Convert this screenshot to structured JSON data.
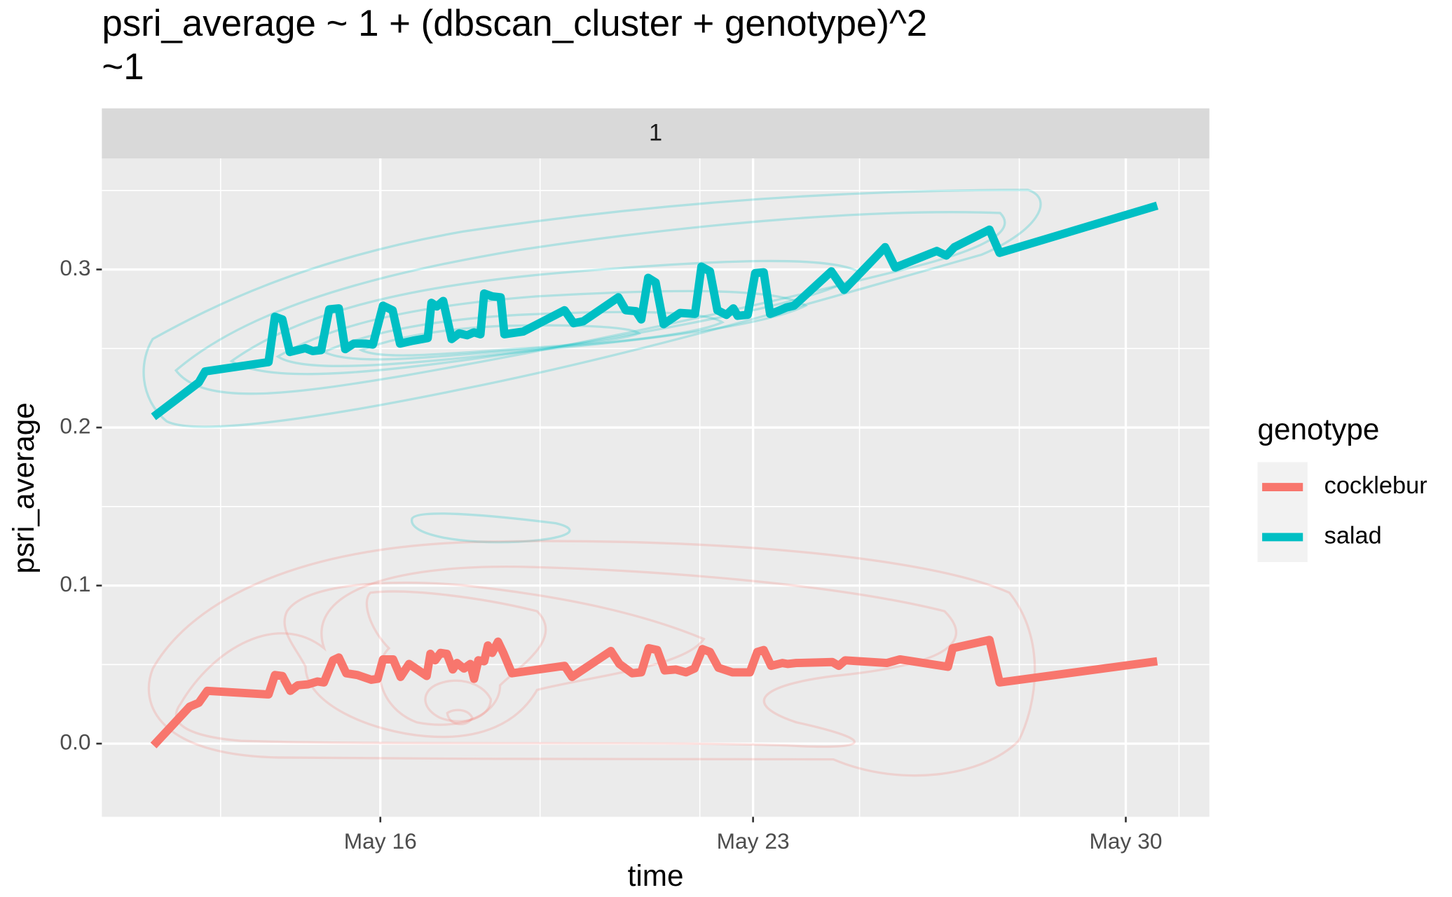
{
  "chart_data": {
    "type": "line",
    "title": "psri_average ~ 1 + (dbscan_cluster + genotype)^2",
    "subtitle": "~1",
    "facet_label": "1",
    "x_label": "time",
    "y_label": "psri_average",
    "legend_title": "genotype",
    "legend_position": "right",
    "grid": true,
    "xlim": [
      10.77,
      31.57
    ],
    "xticks": [
      {
        "value": 16,
        "label": "May 16"
      },
      {
        "value": 23,
        "label": "May 23"
      },
      {
        "value": 30,
        "label": "May 30"
      }
    ],
    "x_minor_gridlines": [
      13,
      19,
      22,
      25,
      28,
      31
    ],
    "ylim": [
      -0.0463,
      0.3703
    ],
    "yticks": [
      {
        "value": 0,
        "label": "0.0"
      },
      {
        "value": 0.1,
        "label": "0.1"
      },
      {
        "value": 0.2,
        "label": "0.2"
      },
      {
        "value": 0.3,
        "label": "0.3"
      }
    ],
    "y_minor_gridlines": [
      0.05,
      0.15,
      0.25,
      0.35
    ],
    "series": [
      {
        "name": "cocklebur",
        "color": "#f8766d",
        "x": [
          11.74,
          12.42,
          12.59,
          12.75,
          13.9,
          14.02,
          14.16,
          14.31,
          14.45,
          14.64,
          14.82,
          14.94,
          15.11,
          15.22,
          15.36,
          15.57,
          15.83,
          15.95,
          16.05,
          16.24,
          16.38,
          16.54,
          16.87,
          16.94,
          17.03,
          17.13,
          17.25,
          17.36,
          17.44,
          17.57,
          17.69,
          17.76,
          17.84,
          17.95,
          18.02,
          18.1,
          18.21,
          18.31,
          18.47,
          19.46,
          19.6,
          20.33,
          20.49,
          20.73,
          20.9,
          21.04,
          21.2,
          21.34,
          21.55,
          21.74,
          21.9,
          22.05,
          22.19,
          22.35,
          22.61,
          22.94,
          23.08,
          23.2,
          23.34,
          23.55,
          23.65,
          23.81,
          24.49,
          24.61,
          24.73,
          25.51,
          25.76,
          26.66,
          26.75,
          27.44,
          27.63,
          30.59
        ],
        "values": [
          -0.0012,
          0.0234,
          0.0258,
          0.0334,
          0.0311,
          0.0434,
          0.0428,
          0.0334,
          0.0369,
          0.0375,
          0.0393,
          0.0387,
          0.0527,
          0.0545,
          0.0445,
          0.0434,
          0.0404,
          0.041,
          0.0533,
          0.0533,
          0.0422,
          0.0504,
          0.0428,
          0.0568,
          0.0527,
          0.0574,
          0.0568,
          0.0469,
          0.051,
          0.0475,
          0.0504,
          0.041,
          0.0527,
          0.0521,
          0.0621,
          0.0574,
          0.0645,
          0.0574,
          0.0445,
          0.0492,
          0.0422,
          0.0586,
          0.0504,
          0.0445,
          0.0451,
          0.0604,
          0.0592,
          0.0463,
          0.0469,
          0.0451,
          0.0475,
          0.0598,
          0.058,
          0.048,
          0.0451,
          0.0451,
          0.058,
          0.0592,
          0.0492,
          0.051,
          0.0504,
          0.051,
          0.0516,
          0.0492,
          0.0527,
          0.051,
          0.0533,
          0.0486,
          0.0604,
          0.0656,
          0.0387,
          0.0521
        ]
      },
      {
        "name": "salad",
        "color": "#00bfc4",
        "x": [
          11.74,
          12.59,
          12.71,
          13.9,
          14.02,
          14.16,
          14.3,
          14.59,
          14.73,
          14.89,
          15.04,
          15.22,
          15.34,
          15.5,
          15.72,
          15.86,
          16.05,
          16.23,
          16.37,
          16.61,
          16.89,
          16.96,
          17.06,
          17.18,
          17.34,
          17.48,
          17.63,
          17.76,
          17.88,
          17.95,
          18.1,
          18.26,
          18.33,
          18.68,
          19.46,
          19.63,
          19.81,
          20.47,
          20.61,
          20.8,
          20.9,
          21.03,
          21.17,
          21.32,
          21.63,
          21.91,
          22.03,
          22.19,
          22.33,
          22.5,
          22.63,
          22.71,
          22.9,
          23.04,
          23.2,
          23.32,
          23.46,
          23.63,
          23.77,
          24.47,
          24.71,
          25.48,
          25.67,
          26.45,
          26.63,
          26.78,
          27.44,
          27.63,
          30.59
        ],
        "values": [
          0.2068,
          0.2285,
          0.2355,
          0.2414,
          0.2701,
          0.2684,
          0.2478,
          0.2502,
          0.2484,
          0.249,
          0.2748,
          0.2754,
          0.2496,
          0.2531,
          0.2531,
          0.2525,
          0.2771,
          0.2742,
          0.2531,
          0.2549,
          0.2566,
          0.2789,
          0.2766,
          0.2801,
          0.256,
          0.2596,
          0.2584,
          0.2602,
          0.259,
          0.2848,
          0.283,
          0.2824,
          0.259,
          0.2607,
          0.2742,
          0.266,
          0.2672,
          0.2824,
          0.2742,
          0.2736,
          0.2684,
          0.2947,
          0.2918,
          0.2654,
          0.2725,
          0.2719,
          0.3018,
          0.2988,
          0.2742,
          0.2713,
          0.2754,
          0.2707,
          0.2713,
          0.2977,
          0.2982,
          0.2719,
          0.2736,
          0.276,
          0.2771,
          0.2988,
          0.2871,
          0.3141,
          0.3012,
          0.3117,
          0.3088,
          0.3141,
          0.3252,
          0.3105,
          0.3404
        ]
      }
    ]
  }
}
